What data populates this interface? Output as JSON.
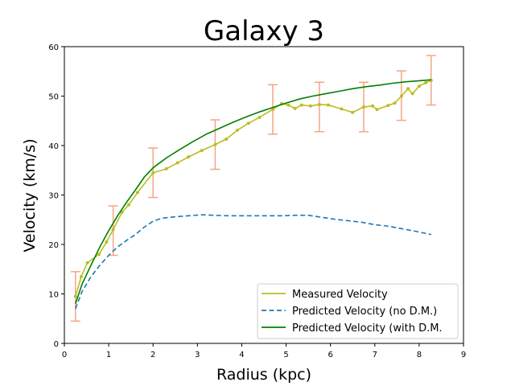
{
  "chart_data": {
    "type": "line",
    "title": "Galaxy 3",
    "xlabel": "Radius (kpc)",
    "ylabel": "Velocity (km/s)",
    "xlim": [
      0,
      9
    ],
    "ylim": [
      0,
      60
    ],
    "xticks": [
      0,
      1,
      2,
      3,
      4,
      5,
      6,
      7,
      8,
      9
    ],
    "yticks": [
      0,
      10,
      20,
      30,
      40,
      50,
      60
    ],
    "grid": false,
    "legend_position": "lower-right",
    "series": [
      {
        "name": "Measured Velocity",
        "color": "#bcbd22",
        "style": "solid-with-markers",
        "x": [
          0.25,
          0.38,
          0.52,
          0.78,
          0.95,
          1.1,
          1.3,
          1.45,
          1.65,
          2.0,
          2.3,
          2.55,
          2.8,
          3.1,
          3.4,
          3.65,
          3.9,
          4.15,
          4.4,
          4.7,
          4.9,
          5.05,
          5.2,
          5.35,
          5.55,
          5.75,
          5.95,
          6.25,
          6.5,
          6.75,
          6.95,
          7.05,
          7.3,
          7.45,
          7.6,
          7.75,
          7.85,
          8.0,
          8.15,
          8.27
        ],
        "y": [
          9.5,
          13.5,
          16.3,
          18.0,
          20.5,
          23.0,
          26.5,
          28.0,
          30.5,
          34.5,
          35.3,
          36.5,
          37.7,
          39.0,
          40.2,
          41.3,
          43.1,
          44.5,
          45.7,
          47.3,
          48.5,
          48.2,
          47.5,
          48.2,
          48.0,
          48.3,
          48.2,
          47.4,
          46.7,
          47.8,
          48.0,
          47.3,
          48.1,
          48.6,
          50.0,
          51.5,
          50.5,
          52.0,
          52.7,
          53.2
        ]
      },
      {
        "name": "Predicted Velocity (no D.M.)",
        "color": "#1f77b4",
        "style": "dashed",
        "x": [
          0.25,
          0.4,
          0.6,
          0.8,
          1.0,
          1.2,
          1.4,
          1.6,
          1.8,
          2.0,
          2.2,
          2.5,
          2.8,
          3.1,
          3.4,
          3.7,
          4.0,
          4.3,
          4.6,
          4.9,
          5.2,
          5.5,
          5.8,
          6.1,
          6.4,
          6.7,
          7.0,
          7.3,
          7.6,
          7.9,
          8.27
        ],
        "y": [
          7.0,
          10.5,
          13.5,
          15.8,
          17.8,
          19.5,
          20.8,
          22.0,
          23.5,
          24.7,
          25.3,
          25.6,
          25.8,
          26.0,
          25.9,
          25.8,
          25.8,
          25.8,
          25.8,
          25.8,
          25.9,
          25.9,
          25.5,
          25.1,
          24.8,
          24.5,
          24.0,
          23.7,
          23.2,
          22.7,
          22.0
        ]
      },
      {
        "name": "Predicted Velocity (with D.M.",
        "color": "#008000",
        "style": "solid",
        "x": [
          0.25,
          0.4,
          0.6,
          0.8,
          1.0,
          1.2,
          1.4,
          1.6,
          1.8,
          2.0,
          2.3,
          2.6,
          2.9,
          3.2,
          3.5,
          3.8,
          4.1,
          4.4,
          4.7,
          5.0,
          5.3,
          5.6,
          5.9,
          6.2,
          6.5,
          6.8,
          7.1,
          7.4,
          7.7,
          8.0,
          8.27
        ],
        "y": [
          8.0,
          12.0,
          15.8,
          19.5,
          22.8,
          25.8,
          28.5,
          31.0,
          33.6,
          35.5,
          37.5,
          39.2,
          40.8,
          42.3,
          43.5,
          44.7,
          45.8,
          46.8,
          47.7,
          48.6,
          49.4,
          50.0,
          50.5,
          51.0,
          51.5,
          51.9,
          52.2,
          52.6,
          52.9,
          53.1,
          53.3
        ]
      }
    ],
    "error_bars": {
      "color": "#f4a582",
      "x": [
        0.25,
        1.1,
        2.0,
        3.4,
        4.7,
        5.75,
        6.75,
        7.6,
        8.27
      ],
      "y": [
        9.5,
        22.8,
        34.5,
        40.2,
        47.3,
        47.8,
        47.8,
        50.1,
        53.2
      ],
      "err": [
        5.0,
        5.0,
        5.0,
        5.0,
        5.0,
        5.0,
        5.0,
        5.0,
        5.0
      ]
    }
  }
}
